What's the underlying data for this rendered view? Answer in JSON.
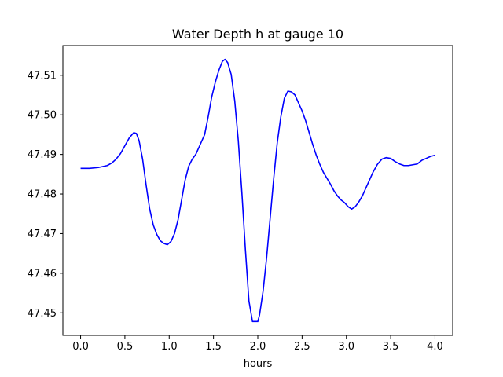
{
  "chart_data": {
    "type": "line",
    "title": "Water Depth h at gauge 10",
    "xlabel": "hours",
    "ylabel": "",
    "xlim": [
      -0.2,
      4.2
    ],
    "ylim": [
      47.4443,
      47.5175
    ],
    "xticks": [
      0.0,
      0.5,
      1.0,
      1.5,
      2.0,
      2.5,
      3.0,
      3.5,
      4.0
    ],
    "xtick_labels": [
      "0.0",
      "0.5",
      "1.0",
      "1.5",
      "2.0",
      "2.5",
      "3.0",
      "3.5",
      "4.0"
    ],
    "yticks": [
      47.45,
      47.46,
      47.47,
      47.48,
      47.49,
      47.5,
      47.51
    ],
    "ytick_labels": [
      "47.45",
      "47.46",
      "47.47",
      "47.48",
      "47.49",
      "47.50",
      "47.51"
    ],
    "grid": false,
    "line_color": "#0000ff",
    "series": [
      {
        "x": [
          0.0,
          0.1,
          0.2,
          0.3,
          0.35,
          0.4,
          0.45,
          0.5,
          0.55,
          0.6,
          0.63,
          0.66,
          0.7,
          0.74,
          0.78,
          0.82,
          0.86,
          0.9,
          0.94,
          0.98,
          1.02,
          1.06,
          1.1,
          1.14,
          1.18,
          1.22,
          1.26,
          1.3,
          1.34,
          1.37,
          1.4,
          1.44,
          1.48,
          1.52,
          1.56,
          1.6,
          1.63,
          1.66,
          1.7,
          1.74,
          1.78,
          1.82,
          1.86,
          1.9,
          1.94,
          1.98,
          2.0,
          2.02,
          2.06,
          2.1,
          2.14,
          2.18,
          2.22,
          2.26,
          2.3,
          2.34,
          2.38,
          2.42,
          2.46,
          2.5,
          2.54,
          2.58,
          2.62,
          2.66,
          2.7,
          2.74,
          2.78,
          2.82,
          2.86,
          2.9,
          2.94,
          2.98,
          3.02,
          3.06,
          3.1,
          3.14,
          3.18,
          3.22,
          3.26,
          3.3,
          3.35,
          3.4,
          3.45,
          3.5,
          3.55,
          3.6,
          3.65,
          3.7,
          3.75,
          3.8,
          3.85,
          3.9,
          3.95,
          4.0
        ],
        "y": [
          47.4865,
          47.4865,
          47.4867,
          47.4872,
          47.4878,
          47.4888,
          47.4902,
          47.4922,
          47.4942,
          47.4955,
          47.4953,
          47.4935,
          47.4888,
          47.4822,
          47.4762,
          47.4722,
          47.4698,
          47.4682,
          47.4675,
          47.4672,
          47.468,
          47.47,
          47.4735,
          47.4785,
          47.4835,
          47.487,
          47.4888,
          47.49,
          47.492,
          47.4935,
          47.495,
          47.4995,
          47.5045,
          47.5082,
          47.5112,
          47.5135,
          47.514,
          47.5132,
          47.5102,
          47.5035,
          47.4935,
          47.4805,
          47.466,
          47.453,
          47.4478,
          47.4478,
          47.4478,
          47.4495,
          47.4555,
          47.464,
          47.474,
          47.484,
          47.493,
          47.4995,
          47.5042,
          47.506,
          47.5058,
          47.505,
          47.503,
          47.501,
          47.4985,
          47.4955,
          47.4925,
          47.4898,
          47.4875,
          47.4855,
          47.484,
          47.4825,
          47.4808,
          47.4795,
          47.4785,
          47.4778,
          47.4768,
          47.4762,
          47.4768,
          47.478,
          47.4795,
          47.4815,
          47.4835,
          47.4855,
          47.4875,
          47.4888,
          47.4892,
          47.489,
          47.4882,
          47.4876,
          47.4872,
          47.4872,
          47.4874,
          47.4876,
          47.4885,
          47.489,
          47.4895,
          47.4898
        ]
      }
    ]
  }
}
